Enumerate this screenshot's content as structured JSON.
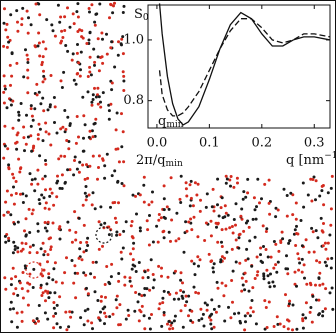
{
  "chart_data": {
    "type": "line",
    "ylabel": {
      "text": "S",
      "sub": "0"
    },
    "xlabel": {
      "text": "q [nm",
      "sup": "−1",
      "tail": "]"
    },
    "annotations": [
      {
        "text": "q",
        "sub": "min"
      },
      {
        "text": "2π/q",
        "sub": "min"
      }
    ],
    "x": [
      0.005,
      0.01,
      0.02,
      0.03,
      0.04,
      0.05,
      0.06,
      0.08,
      0.1,
      0.12,
      0.14,
      0.16,
      0.18,
      0.2,
      0.22,
      0.24,
      0.26,
      0.28,
      0.3,
      0.33
    ],
    "series": [
      {
        "color": "#111111",
        "style": "solid",
        "values": [
          1.12,
          1.02,
          0.88,
          0.79,
          0.74,
          0.72,
          0.73,
          0.78,
          0.87,
          0.97,
          1.05,
          1.09,
          1.07,
          1.02,
          0.98,
          0.98,
          1.0,
          1.01,
          1.01,
          1.0
        ]
      },
      {
        "color": "#111111",
        "style": "dashed",
        "values": [
          0.9,
          0.82,
          0.77,
          0.75,
          0.75,
          0.76,
          0.78,
          0.83,
          0.9,
          0.97,
          1.03,
          1.07,
          1.07,
          1.04,
          1.0,
          0.99,
          1.0,
          1.02,
          1.02,
          1.01
        ]
      }
    ],
    "xlim": [
      -0.017,
      0.33
    ],
    "ylim": [
      0.71,
      1.115
    ],
    "xticks": [
      {
        "value": 0,
        "label": "0.0"
      },
      0.1,
      0.2,
      0.3
    ],
    "yticks": [
      0.8,
      {
        "value": 1.0,
        "label": "1.0"
      }
    ]
  }
}
